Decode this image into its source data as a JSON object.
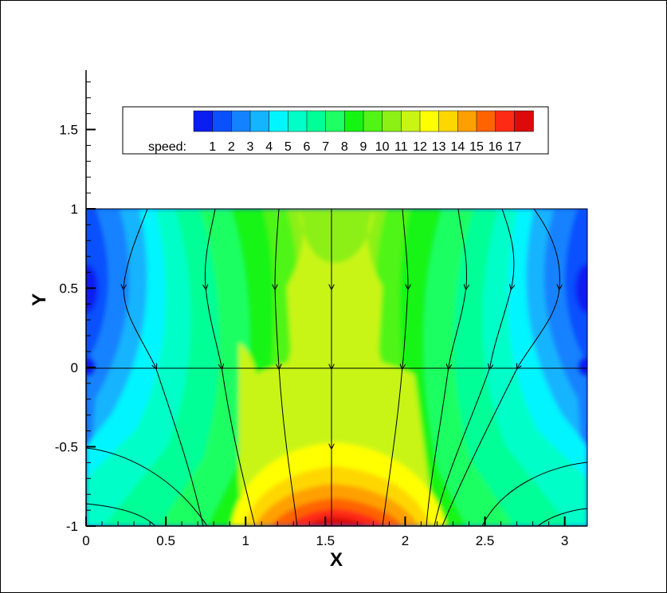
{
  "chart_data": {
    "type": "heatmap",
    "subtype": "contour-with-streamlines",
    "xlabel": "X",
    "ylabel": "Y",
    "xlim": [
      0,
      3.14159
    ],
    "ylim": [
      -1,
      1.85
    ],
    "domain_y": [
      -1,
      1
    ],
    "x_ticks": [
      "0",
      "0.5",
      "1",
      "1.5",
      "2",
      "2.5",
      "3"
    ],
    "y_ticks": [
      "-1",
      "-0.5",
      "0",
      "0.5",
      "1",
      "1.5"
    ],
    "x_tick_values": [
      0,
      0.5,
      1,
      1.5,
      2,
      2.5,
      3
    ],
    "y_tick_values": [
      -1,
      -0.5,
      0,
      0.5,
      1,
      1.5
    ],
    "colorbar": {
      "label": "speed:",
      "levels": [
        "1",
        "2",
        "3",
        "4",
        "5",
        "6",
        "7",
        "8",
        "9",
        "10",
        "11",
        "12",
        "13",
        "14",
        "15",
        "16",
        "17"
      ],
      "colors": [
        "#0a1ef0",
        "#0a50ff",
        "#1482ff",
        "#14b4ff",
        "#00f5ff",
        "#00ffc8",
        "#00ff96",
        "#1eff64",
        "#14f514",
        "#50f514",
        "#8cf014",
        "#c8f514",
        "#ffff00",
        "#ffd700",
        "#ffa000",
        "#ff6400",
        "#ff2a14",
        "#dc0a0a"
      ]
    },
    "streamline_x_at_top": [
      0.25,
      0.75,
      1.2,
      1.55,
      1.95,
      2.3,
      2.65,
      2.95
    ],
    "grid": false,
    "legend_position": "top"
  }
}
